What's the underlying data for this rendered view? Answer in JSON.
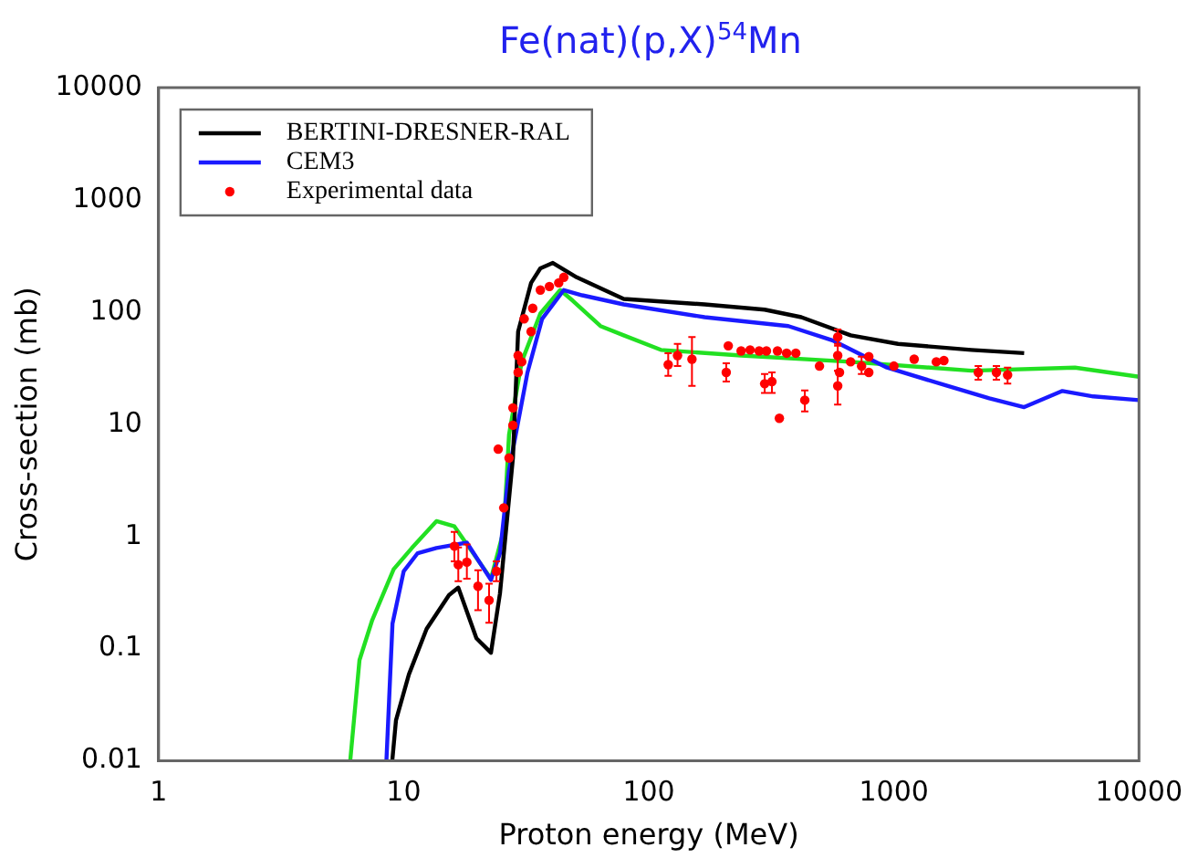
{
  "chart_data": {
    "type": "line",
    "title": "Fe(nat)(p,X)$^{54}$Mn",
    "xlabel": "Proton energy (MeV)",
    "ylabel": "Cross-section (mb)",
    "log": "xy",
    "xlim": [
      1,
      10000
    ],
    "xticks": [
      1,
      10,
      100,
      1000,
      10000
    ],
    "ylim": [
      0.01,
      10000
    ],
    "yticks": [
      0.01,
      0.1,
      1,
      10,
      100,
      1000,
      10000
    ],
    "grid": false,
    "legend": "top left",
    "marker": "none",
    "line_style": "solid",
    "series": [
      {
        "name": "BERTINI-DRESNER-RAL",
        "color": "#000000",
        "x": [
          8.98,
          9.3,
          10.5,
          12.4,
          15.3,
          16.7,
          19.8,
          22.7,
          24.7,
          27.9,
          29.3,
          33.1,
          36.1,
          40.6,
          50.8,
          79,
          169,
          297,
          419,
          666,
          1040,
          2070,
          3400
        ],
        "values": [
          0.01,
          0.023,
          0.059,
          0.15,
          0.3,
          0.35,
          0.124,
          0.092,
          0.31,
          5,
          67,
          182,
          245,
          274,
          204,
          131,
          117,
          105,
          90,
          62,
          52,
          46,
          43
        ]
      },
      {
        "name": "CEM3",
        "color": "#1a1aff",
        "x": [
          8.5,
          9,
          10,
          11.4,
          13.6,
          18.1,
          22.7,
          24.7,
          26.9,
          32,
          36.7,
          45,
          53.5,
          79,
          169,
          371,
          561,
          937,
          1650,
          2450,
          3400,
          4870,
          6510,
          10000
        ],
        "values": [
          0.01,
          0.167,
          0.49,
          0.71,
          0.79,
          0.88,
          0.41,
          0.71,
          3.9,
          29,
          87,
          157,
          141,
          117,
          90,
          75,
          56,
          32,
          22,
          17,
          14.2,
          19.8,
          17.7,
          16.4
        ]
      },
      {
        "color": "#22e022",
        "x": [
          6.05,
          6.6,
          7.44,
          9.1,
          10.8,
          13.6,
          16.1,
          22.7,
          25.6,
          26.9,
          30.3,
          36.1,
          43.5,
          49,
          63.5,
          79,
          112,
          238,
          666,
          2070,
          5480,
          10000
        ],
        "values": [
          0.01,
          0.079,
          0.18,
          0.51,
          0.79,
          1.37,
          1.23,
          0.42,
          1.14,
          8.1,
          36,
          97,
          157,
          126,
          75,
          62,
          46,
          41,
          36,
          30,
          32,
          26.5
        ]
      },
      {
        "name": "Experimental data",
        "color": "#ff0000",
        "type": "scatter",
        "marker": "circle",
        "x": [
          16.1,
          16.7,
          18.1,
          20.1,
          22.3,
          23.9,
          24.3,
          25.6,
          26.9,
          27.9,
          27.9,
          29.3,
          29.3,
          30.3,
          31,
          33.1,
          33.6,
          36.1,
          39.3,
          42.9,
          45,
          120,
          131,
          150,
          207,
          211,
          238,
          259,
          282,
          302,
          297,
          318,
          335,
          341,
          365,
          398,
          433,
          497,
          590,
          590,
          590,
          600,
          666,
          738,
          790,
          790,
          1000,
          1210,
          1490,
          1600,
          2210,
          2620,
          2910
        ],
        "values": [
          0.82,
          0.56,
          0.59,
          0.36,
          0.27,
          0.49,
          6,
          1.8,
          5,
          9.8,
          14,
          29,
          41,
          36,
          87,
          67,
          108,
          157,
          169,
          182,
          204,
          34,
          41,
          38,
          29,
          50,
          45,
          46,
          45,
          45,
          23,
          24,
          45,
          11.3,
          43,
          43,
          16.4,
          33,
          60,
          41,
          22,
          29,
          36,
          33,
          40,
          29,
          33,
          38,
          36,
          37,
          29,
          29,
          27.5
        ],
        "errors": [
          [
            0.6,
            1.1
          ],
          [
            0.4,
            0.8
          ],
          [
            0.42,
            0.85
          ],
          [
            0.22,
            0.5
          ],
          [
            0.17,
            0.38
          ],
          [
            0.4,
            0.6
          ],
          null,
          null,
          null,
          null,
          null,
          null,
          null,
          null,
          null,
          null,
          null,
          null,
          null,
          null,
          null,
          [
            27,
            43
          ],
          [
            33,
            52
          ],
          [
            22,
            60
          ],
          [
            24,
            35
          ],
          null,
          null,
          null,
          null,
          null,
          [
            19,
            28
          ],
          [
            19,
            29
          ],
          null,
          null,
          null,
          null,
          [
            13,
            20
          ],
          null,
          [
            50,
            70
          ],
          [
            30,
            52
          ],
          [
            15,
            30
          ],
          null,
          null,
          [
            28,
            40
          ],
          null,
          null,
          null,
          null,
          null,
          null,
          [
            25,
            33
          ],
          [
            25,
            33
          ],
          [
            23,
            32
          ]
        ]
      }
    ]
  }
}
